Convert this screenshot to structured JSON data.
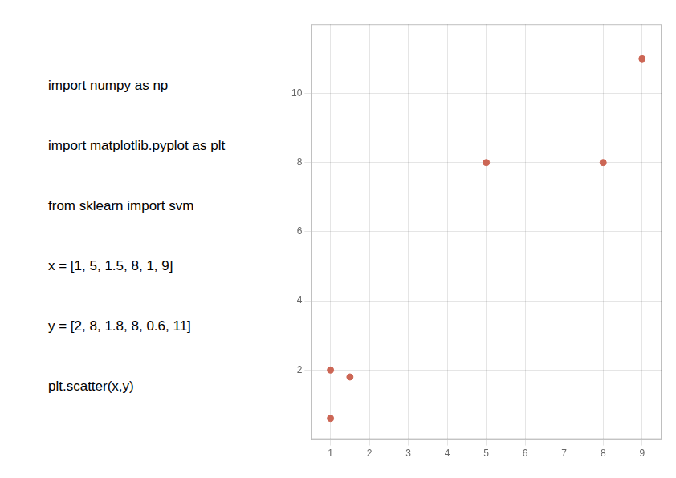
{
  "chart_data": {
    "type": "scatter",
    "x": [
      1,
      5,
      1.5,
      8,
      1,
      9
    ],
    "values": [
      2,
      8,
      1.8,
      8,
      0.6,
      11
    ],
    "color": "#cc6655",
    "xlim": [
      0.5,
      9.5
    ],
    "xticks": [
      1,
      2,
      3,
      4,
      5,
      6,
      7,
      8,
      9
    ],
    "ylim": [
      0,
      12
    ],
    "yticks": [
      2,
      4,
      6,
      8,
      10
    ],
    "grid": true,
    "annotations": [
      "import numpy as np",
      "import matplotlib.pyplot as plt",
      "from sklearn import svm",
      "x = [1, 5, 1.5, 8, 1, 9]",
      "y = [2, 8, 1.8, 8, 0.6, 11]",
      "plt.scatter(x,y)"
    ]
  }
}
